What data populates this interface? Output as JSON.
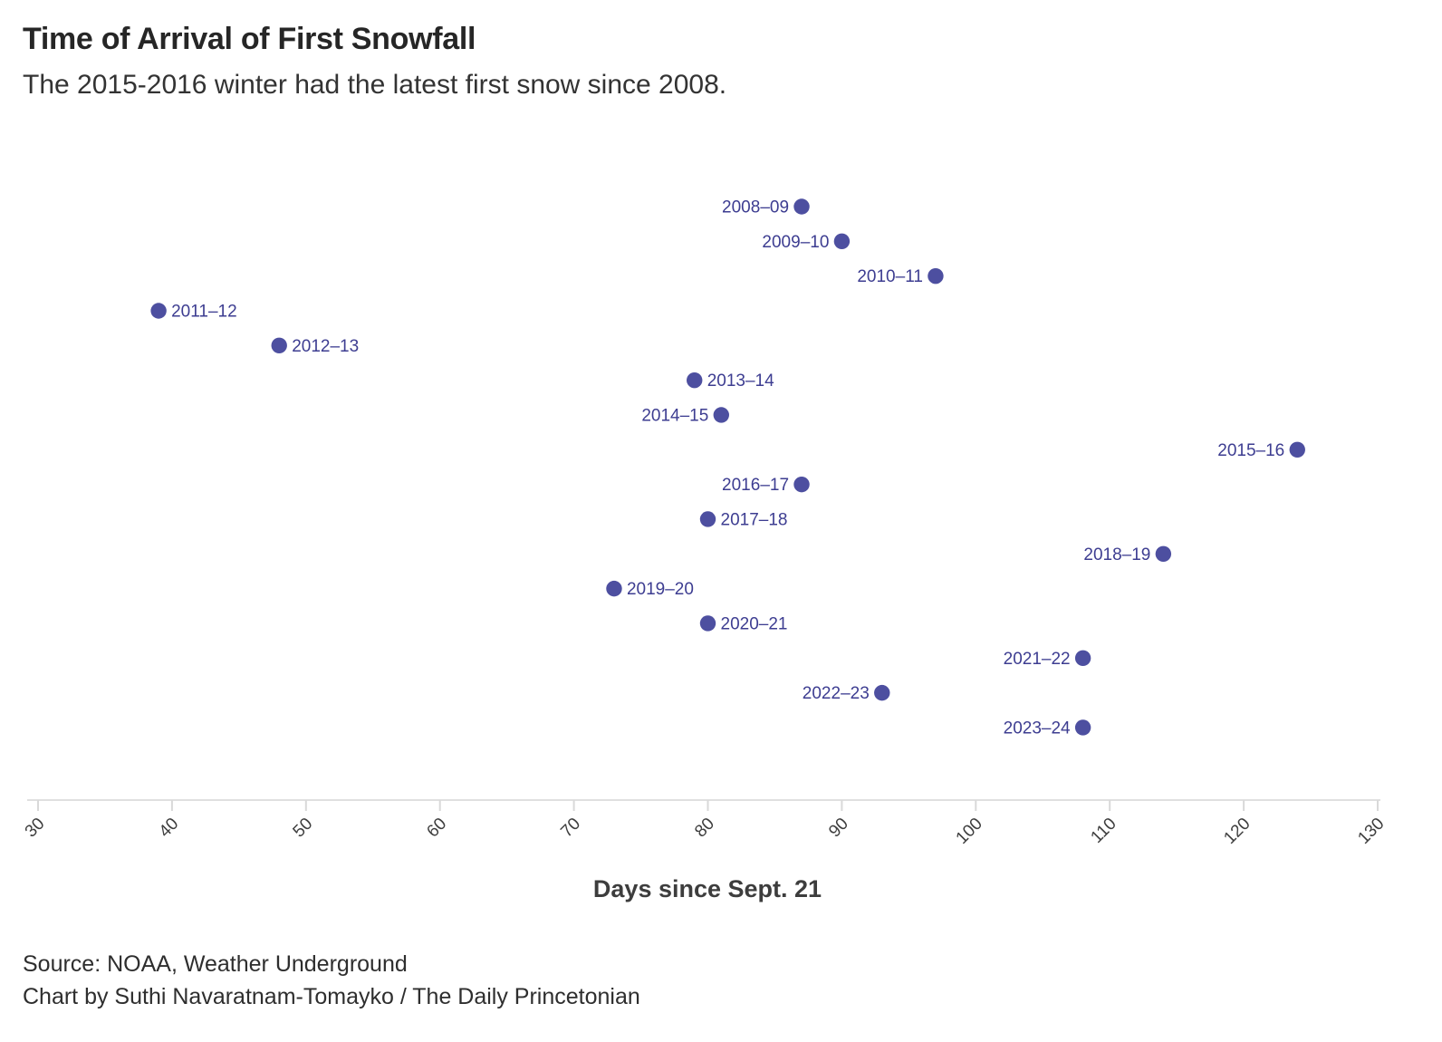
{
  "chart_data": {
    "type": "scatter",
    "title": "Time of Arrival of First Snowfall",
    "subtitle": "The 2015-2016 winter had the latest first snow since 2008.",
    "xlabel": "Days since Sept. 21",
    "xlim": [
      30,
      130
    ],
    "xticks": [
      30,
      40,
      50,
      60,
      70,
      80,
      90,
      100,
      110,
      120,
      130
    ],
    "grid": false,
    "legend": "none",
    "points": [
      {
        "season": "2008–09",
        "days": 87,
        "label_side": "left"
      },
      {
        "season": "2009–10",
        "days": 90,
        "label_side": "left"
      },
      {
        "season": "2010–11",
        "days": 97,
        "label_side": "left"
      },
      {
        "season": "2011–12",
        "days": 39,
        "label_side": "right"
      },
      {
        "season": "2012–13",
        "days": 48,
        "label_side": "right"
      },
      {
        "season": "2013–14",
        "days": 79,
        "label_side": "right"
      },
      {
        "season": "2014–15",
        "days": 81,
        "label_side": "left"
      },
      {
        "season": "2015–16",
        "days": 124,
        "label_side": "left"
      },
      {
        "season": "2016–17",
        "days": 87,
        "label_side": "left"
      },
      {
        "season": "2017–18",
        "days": 80,
        "label_side": "right"
      },
      {
        "season": "2018–19",
        "days": 114,
        "label_side": "left"
      },
      {
        "season": "2019–20",
        "days": 73,
        "label_side": "right"
      },
      {
        "season": "2020–21",
        "days": 80,
        "label_side": "right"
      },
      {
        "season": "2021–22",
        "days": 108,
        "label_side": "left"
      },
      {
        "season": "2022–23",
        "days": 93,
        "label_side": "left"
      },
      {
        "season": "2023–24",
        "days": 108,
        "label_side": "left"
      }
    ],
    "colors": {
      "dot": "#4d4fa0",
      "point_label": "#3d3d91",
      "axis_line": "#e0e0e0",
      "tick_mark": "#d9d9d9",
      "tick_label": "#3e3e3e"
    }
  },
  "footer": {
    "source": "Source: NOAA, Weather Underground",
    "credit": "Chart by Suthi Navaratnam-Tomayko / The Daily Princetonian"
  }
}
